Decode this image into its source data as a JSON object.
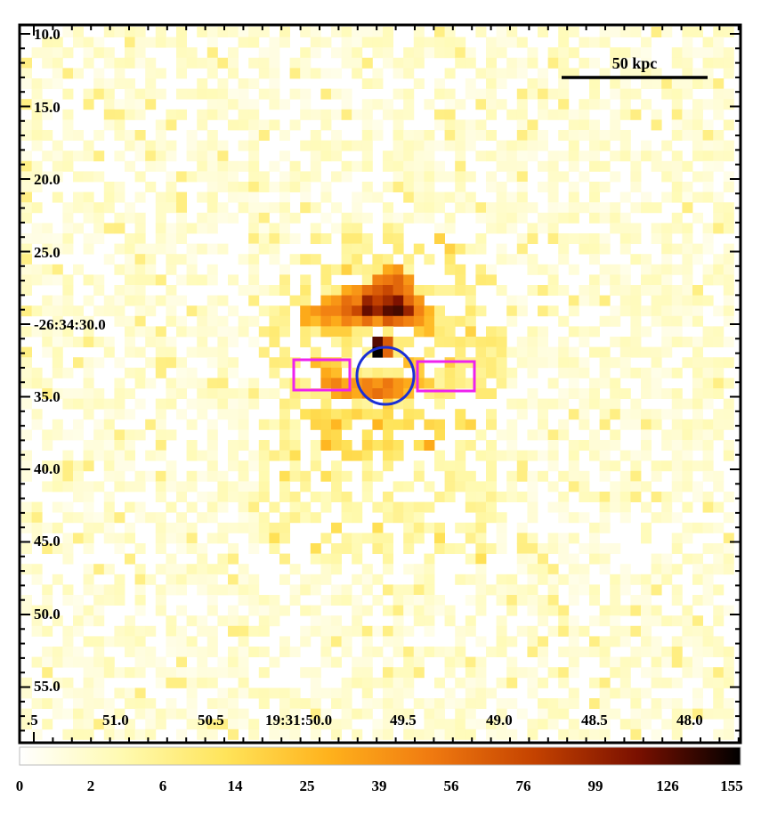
{
  "image": {
    "y_tick_labels": [
      "10.0",
      "15.0",
      "20.0",
      "25.0",
      "-26:34:30.0",
      "35.0",
      "40.0",
      "45.0",
      "50.0",
      "55.0"
    ],
    "x_tick_labels": [
      ".5",
      "51.0",
      "50.5",
      "19:31:50.0",
      "49.5",
      "49.0",
      "48.5",
      "48.0"
    ],
    "scale_bar_label": "50 kpc",
    "colorbar_labels": [
      "0",
      "2",
      "6",
      "14",
      "25",
      "39",
      "56",
      "76",
      "99",
      "126",
      "155"
    ],
    "colors": {
      "region_box": "#ee22ee",
      "region_circle": "#1a2fd6",
      "frame": "#000000",
      "colormap": [
        "#ffffff",
        "#fffab0",
        "#ffe45a",
        "#ffb21c",
        "#f07a10",
        "#c44200",
        "#7a1000",
        "#000000"
      ]
    }
  }
}
